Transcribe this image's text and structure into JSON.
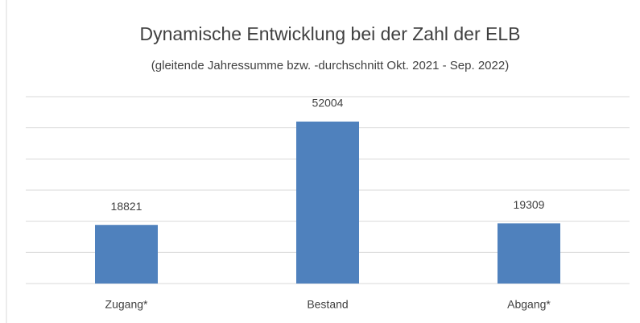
{
  "chart_data": {
    "type": "bar",
    "title": "Dynamische Entwicklung bei der Zahl der ELB",
    "subtitle": "(gleitende Jahressumme bzw. -durchschnitt Okt. 2021 - Sep. 2022)",
    "categories": [
      "Zugang*",
      "Bestand",
      "Abgang*"
    ],
    "values": [
      18821,
      52004,
      19309
    ],
    "color": "#4f81bd",
    "ylim": [
      0,
      60000
    ],
    "yticks": [
      0,
      10000,
      20000,
      30000,
      40000,
      50000,
      60000
    ],
    "grid": true
  }
}
